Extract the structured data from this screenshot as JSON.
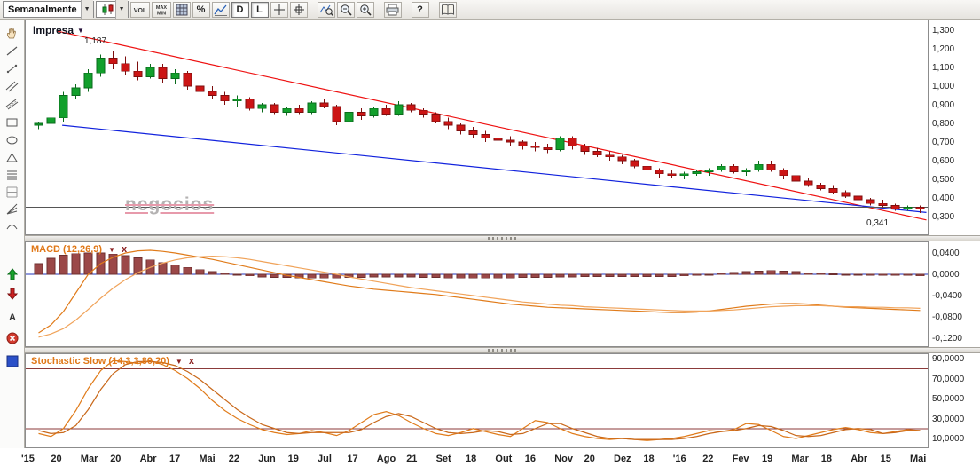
{
  "icons": {
    "caret_down": "▼",
    "close": "x"
  },
  "toolbar": {
    "items": [
      {
        "name": "interval-dropdown",
        "type": "dropdown",
        "label": "Semanalmente"
      },
      {
        "name": "chart-type-dropdown",
        "type": "dropdown",
        "icon": "candle"
      },
      {
        "name": "volume-button",
        "type": "button",
        "icon": "vol"
      },
      {
        "name": "max-min-button",
        "type": "button",
        "icon": "maxmin"
      },
      {
        "name": "grid-button",
        "type": "button",
        "icon": "grid-tb"
      },
      {
        "name": "percent-button",
        "type": "button",
        "label": "%"
      },
      {
        "name": "indicator-button",
        "type": "button",
        "icon": "indicator"
      },
      {
        "name": "daily-button",
        "type": "button",
        "label": "D",
        "pressed": true
      },
      {
        "name": "log-scale-button",
        "type": "button",
        "label": "L",
        "pressed": true
      },
      {
        "name": "crosshair-button",
        "type": "button",
        "icon": "crosshair"
      },
      {
        "name": "tracker-button",
        "type": "button",
        "icon": "crosshair-box"
      },
      {
        "name": "zoom-area-button",
        "type": "button",
        "icon": "zoom-area",
        "gap_before": true
      },
      {
        "name": "zoom-out-button",
        "type": "button",
        "icon": "zoom-out"
      },
      {
        "name": "zoom-in-button",
        "type": "button",
        "icon": "zoom-in"
      },
      {
        "name": "print-button",
        "type": "button",
        "icon": "print",
        "gap_before": true
      },
      {
        "name": "help-button",
        "type": "button",
        "label": "?",
        "gap_before": true
      },
      {
        "name": "book-button",
        "type": "button",
        "icon": "book",
        "gap_before": true
      }
    ]
  },
  "sidebar": {
    "tools": [
      {
        "name": "pan-tool",
        "icon": "hand"
      },
      {
        "name": "trendline-tool",
        "icon": "line-diag"
      },
      {
        "name": "ray-line-tool",
        "icon": "line-diag2"
      },
      {
        "name": "parallel-lines-tool",
        "icon": "parallel"
      },
      {
        "name": "channel-tool",
        "icon": "channel"
      },
      {
        "name": "rectangle-tool",
        "icon": "rect"
      },
      {
        "name": "ellipse-tool",
        "icon": "ellipse"
      },
      {
        "name": "triangle-tool",
        "icon": "triangle"
      },
      {
        "name": "fibonacci-retracement-tool",
        "icon": "fib"
      },
      {
        "name": "grid-tool",
        "icon": "grid-sm"
      },
      {
        "name": "fibonacci-fan-tool",
        "icon": "fan"
      },
      {
        "name": "arc-tool",
        "icon": "arc"
      },
      {
        "name": "buy-marker-tool",
        "icon": "arrow-up-green"
      },
      {
        "name": "sell-marker-tool",
        "icon": "arrow-down-red"
      },
      {
        "name": "text-annotation-tool",
        "icon": "text-a"
      },
      {
        "name": "delete-drawing-tool",
        "icon": "delete-x"
      },
      {
        "name": "active-indicator-marker",
        "icon": "blue-square"
      }
    ]
  },
  "price_panel": {
    "symbol": "Impresa",
    "watermark": "negocios",
    "high_label": "1,187",
    "last_label": "0,341"
  },
  "xaxis": {
    "labels": [
      "'15",
      "20",
      "Mar",
      "20",
      "Abr",
      "17",
      "Mai",
      "22",
      "Jun",
      "19",
      "Jul",
      "17",
      "Ago",
      "21",
      "Set",
      "18",
      "Out",
      "16",
      "Nov",
      "20",
      "Dez",
      "18",
      "'16",
      "22",
      "Fev",
      "19",
      "Mar",
      "18",
      "Abr",
      "15",
      "Mai"
    ]
  },
  "chart_data": [
    {
      "type": "candlestick",
      "title": "Impresa",
      "interval": "Semanalmente",
      "ylim": [
        0.21,
        1.34
      ],
      "y_ticks": [
        "1,300",
        "1,200",
        "1,100",
        "1,000",
        "0,900",
        "0,800",
        "0,700",
        "0,600",
        "0,500",
        "0,400",
        "0,300"
      ],
      "tick_values": [
        1.3,
        1.2,
        1.1,
        1.0,
        0.9,
        0.8,
        0.7,
        0.6,
        0.5,
        0.4,
        0.3
      ],
      "hline": 0.35,
      "annotations": [
        {
          "text": "1,187",
          "price": 1.187,
          "kind": "peak"
        },
        {
          "text": "0,341",
          "price": 0.341,
          "kind": "last"
        }
      ],
      "trendlines": [
        {
          "color": "#ee1111",
          "from_index": 1.5,
          "from_price": 1.295,
          "to_index": 71.5,
          "to_price": 0.282
        },
        {
          "color": "#1122dd",
          "from_index": 1.9,
          "from_price": 0.79,
          "to_index": 71.5,
          "to_price": 0.322
        }
      ],
      "colors": {
        "up": "#12a02c",
        "down": "#cc1515"
      },
      "ohlc": [
        [
          0.79,
          0.81,
          0.77,
          0.8
        ],
        [
          0.8,
          0.84,
          0.79,
          0.83
        ],
        [
          0.83,
          0.97,
          0.81,
          0.95
        ],
        [
          0.95,
          1.01,
          0.93,
          0.99
        ],
        [
          0.99,
          1.09,
          0.97,
          1.07
        ],
        [
          1.07,
          1.17,
          1.05,
          1.15
        ],
        [
          1.15,
          1.187,
          1.09,
          1.12
        ],
        [
          1.12,
          1.16,
          1.06,
          1.08
        ],
        [
          1.08,
          1.13,
          1.03,
          1.05
        ],
        [
          1.05,
          1.12,
          1.04,
          1.1
        ],
        [
          1.1,
          1.12,
          1.02,
          1.04
        ],
        [
          1.04,
          1.09,
          1.01,
          1.07
        ],
        [
          1.07,
          1.08,
          0.98,
          1.0
        ],
        [
          1.0,
          1.03,
          0.95,
          0.97
        ],
        [
          0.97,
          1.0,
          0.93,
          0.95
        ],
        [
          0.95,
          0.97,
          0.9,
          0.92
        ],
        [
          0.92,
          0.95,
          0.89,
          0.93
        ],
        [
          0.93,
          0.94,
          0.87,
          0.88
        ],
        [
          0.88,
          0.91,
          0.86,
          0.9
        ],
        [
          0.9,
          0.91,
          0.85,
          0.86
        ],
        [
          0.86,
          0.89,
          0.84,
          0.88
        ],
        [
          0.88,
          0.9,
          0.85,
          0.86
        ],
        [
          0.86,
          0.92,
          0.85,
          0.91
        ],
        [
          0.91,
          0.93,
          0.88,
          0.89
        ],
        [
          0.89,
          0.9,
          0.79,
          0.81
        ],
        [
          0.81,
          0.87,
          0.8,
          0.86
        ],
        [
          0.86,
          0.88,
          0.82,
          0.84
        ],
        [
          0.84,
          0.89,
          0.83,
          0.88
        ],
        [
          0.88,
          0.9,
          0.84,
          0.85
        ],
        [
          0.85,
          0.92,
          0.84,
          0.9
        ],
        [
          0.9,
          0.91,
          0.86,
          0.87
        ],
        [
          0.87,
          0.88,
          0.83,
          0.85
        ],
        [
          0.85,
          0.86,
          0.8,
          0.81
        ],
        [
          0.81,
          0.83,
          0.77,
          0.79
        ],
        [
          0.79,
          0.8,
          0.74,
          0.76
        ],
        [
          0.76,
          0.78,
          0.72,
          0.74
        ],
        [
          0.74,
          0.76,
          0.7,
          0.72
        ],
        [
          0.72,
          0.74,
          0.69,
          0.71
        ],
        [
          0.71,
          0.73,
          0.68,
          0.7
        ],
        [
          0.7,
          0.71,
          0.66,
          0.68
        ],
        [
          0.68,
          0.7,
          0.65,
          0.67
        ],
        [
          0.67,
          0.69,
          0.64,
          0.66
        ],
        [
          0.66,
          0.73,
          0.65,
          0.72
        ],
        [
          0.72,
          0.73,
          0.66,
          0.68
        ],
        [
          0.68,
          0.69,
          0.63,
          0.65
        ],
        [
          0.65,
          0.67,
          0.62,
          0.63
        ],
        [
          0.63,
          0.65,
          0.6,
          0.62
        ],
        [
          0.62,
          0.63,
          0.58,
          0.6
        ],
        [
          0.6,
          0.61,
          0.56,
          0.57
        ],
        [
          0.57,
          0.59,
          0.54,
          0.55
        ],
        [
          0.55,
          0.56,
          0.51,
          0.53
        ],
        [
          0.53,
          0.55,
          0.51,
          0.52
        ],
        [
          0.52,
          0.54,
          0.5,
          0.53
        ],
        [
          0.53,
          0.55,
          0.52,
          0.54
        ],
        [
          0.54,
          0.56,
          0.52,
          0.55
        ],
        [
          0.55,
          0.58,
          0.54,
          0.57
        ],
        [
          0.57,
          0.58,
          0.53,
          0.54
        ],
        [
          0.54,
          0.56,
          0.52,
          0.55
        ],
        [
          0.55,
          0.6,
          0.54,
          0.58
        ],
        [
          0.58,
          0.6,
          0.54,
          0.55
        ],
        [
          0.55,
          0.56,
          0.5,
          0.52
        ],
        [
          0.52,
          0.53,
          0.48,
          0.49
        ],
        [
          0.49,
          0.51,
          0.46,
          0.47
        ],
        [
          0.47,
          0.48,
          0.44,
          0.45
        ],
        [
          0.45,
          0.47,
          0.42,
          0.43
        ],
        [
          0.43,
          0.44,
          0.4,
          0.41
        ],
        [
          0.41,
          0.42,
          0.38,
          0.39
        ],
        [
          0.39,
          0.4,
          0.36,
          0.37
        ],
        [
          0.37,
          0.39,
          0.35,
          0.36
        ],
        [
          0.36,
          0.37,
          0.33,
          0.34
        ],
        [
          0.34,
          0.36,
          0.33,
          0.35
        ],
        [
          0.35,
          0.36,
          0.32,
          0.341
        ]
      ]
    },
    {
      "type": "macd",
      "title": "MACD (12,26,9)",
      "ylim": [
        -0.135,
        0.06
      ],
      "y_ticks": [
        "0,0400",
        "0,0000",
        "-0,0400",
        "-0,0800",
        "-0,1200"
      ],
      "tick_values": [
        0.04,
        0,
        -0.04,
        -0.08,
        -0.12
      ],
      "colors": {
        "histogram": "#9b4848",
        "macd": "#e07b1a",
        "signal": "#f0a35a",
        "zero_line": "#2233bb"
      },
      "histogram": [
        0.02,
        0.03,
        0.036,
        0.039,
        0.04,
        0.04,
        0.038,
        0.035,
        0.031,
        0.027,
        0.022,
        0.018,
        0.013,
        0.009,
        0.005,
        0.002,
        -0.001,
        -0.003,
        -0.005,
        -0.006,
        -0.006,
        -0.007,
        -0.007,
        -0.007,
        -0.007,
        -0.006,
        -0.006,
        -0.005,
        -0.005,
        -0.005,
        -0.005,
        -0.006,
        -0.006,
        -0.007,
        -0.007,
        -0.007,
        -0.007,
        -0.007,
        -0.007,
        -0.006,
        -0.006,
        -0.006,
        -0.005,
        -0.005,
        -0.004,
        -0.004,
        -0.004,
        -0.004,
        -0.004,
        -0.004,
        -0.004,
        -0.004,
        -0.003,
        -0.002,
        0.0,
        0.002,
        0.004,
        0.005,
        0.006,
        0.007,
        0.006,
        0.005,
        0.003,
        0.002,
        0.001,
        -0.001,
        -0.001,
        -0.002,
        -0.002,
        -0.002,
        -0.002,
        -0.003
      ],
      "macd": [
        -0.11,
        -0.095,
        -0.07,
        -0.035,
        0.0,
        0.02,
        0.032,
        0.04,
        0.044,
        0.045,
        0.043,
        0.04,
        0.036,
        0.032,
        0.028,
        0.023,
        0.018,
        0.013,
        0.008,
        0.003,
        -0.002,
        -0.006,
        -0.01,
        -0.014,
        -0.018,
        -0.022,
        -0.025,
        -0.028,
        -0.03,
        -0.032,
        -0.034,
        -0.036,
        -0.038,
        -0.041,
        -0.044,
        -0.047,
        -0.05,
        -0.053,
        -0.056,
        -0.058,
        -0.06,
        -0.062,
        -0.063,
        -0.064,
        -0.065,
        -0.066,
        -0.067,
        -0.068,
        -0.069,
        -0.07,
        -0.071,
        -0.072,
        -0.072,
        -0.071,
        -0.069,
        -0.066,
        -0.063,
        -0.06,
        -0.058,
        -0.056,
        -0.055,
        -0.055,
        -0.056,
        -0.058,
        -0.06,
        -0.062,
        -0.063,
        -0.064,
        -0.065,
        -0.066,
        -0.067,
        -0.068
      ],
      "signal": [
        -0.118,
        -0.112,
        -0.102,
        -0.086,
        -0.066,
        -0.045,
        -0.026,
        -0.01,
        0.003,
        0.013,
        0.021,
        0.027,
        0.031,
        0.033,
        0.034,
        0.033,
        0.031,
        0.028,
        0.024,
        0.02,
        0.016,
        0.012,
        0.008,
        0.004,
        0.0,
        -0.005,
        -0.009,
        -0.013,
        -0.017,
        -0.021,
        -0.025,
        -0.028,
        -0.031,
        -0.034,
        -0.037,
        -0.04,
        -0.043,
        -0.046,
        -0.049,
        -0.052,
        -0.054,
        -0.056,
        -0.058,
        -0.059,
        -0.061,
        -0.062,
        -0.063,
        -0.064,
        -0.065,
        -0.066,
        -0.067,
        -0.068,
        -0.069,
        -0.069,
        -0.069,
        -0.068,
        -0.067,
        -0.065,
        -0.063,
        -0.061,
        -0.06,
        -0.059,
        -0.059,
        -0.059,
        -0.06,
        -0.061,
        -0.061,
        -0.062,
        -0.062,
        -0.063,
        -0.063,
        -0.064
      ]
    },
    {
      "type": "line",
      "title": "Stochastic Slow (14,3,3,80,20)",
      "ylim": [
        0,
        97
      ],
      "y_ticks": [
        "90,0000",
        "70,0000",
        "50,0000",
        "30,0000",
        "10,0000"
      ],
      "tick_values": [
        90,
        70,
        50,
        30,
        10
      ],
      "ref_lines": [
        80,
        20
      ],
      "colors": {
        "k": "#e07b1a",
        "d": "#c9681a",
        "ref": "#8b3a3a"
      },
      "k": [
        15,
        12,
        20,
        38,
        60,
        78,
        88,
        87,
        85,
        88,
        84,
        78,
        70,
        60,
        48,
        38,
        30,
        24,
        19,
        16,
        14,
        15,
        18,
        16,
        13,
        18,
        26,
        34,
        37,
        33,
        26,
        20,
        15,
        13,
        16,
        20,
        17,
        14,
        12,
        20,
        28,
        26,
        20,
        15,
        12,
        10,
        9,
        10,
        9,
        8,
        9,
        10,
        12,
        15,
        18,
        17,
        19,
        25,
        24,
        18,
        12,
        10,
        13,
        16,
        19,
        21,
        19,
        16,
        15,
        17,
        19,
        18
      ],
      "d": [
        18,
        15,
        16,
        23,
        39,
        59,
        75,
        84,
        87,
        87,
        86,
        83,
        77,
        69,
        59,
        49,
        39,
        31,
        24,
        20,
        16,
        15,
        16,
        16,
        16,
        16,
        19,
        26,
        32,
        35,
        32,
        26,
        20,
        16,
        15,
        16,
        18,
        17,
        14,
        15,
        20,
        25,
        25,
        20,
        16,
        12,
        10,
        10,
        9,
        9,
        9,
        9,
        10,
        12,
        15,
        17,
        18,
        20,
        23,
        22,
        18,
        13,
        12,
        13,
        16,
        19,
        20,
        19,
        15,
        16,
        18,
        18
      ]
    }
  ]
}
